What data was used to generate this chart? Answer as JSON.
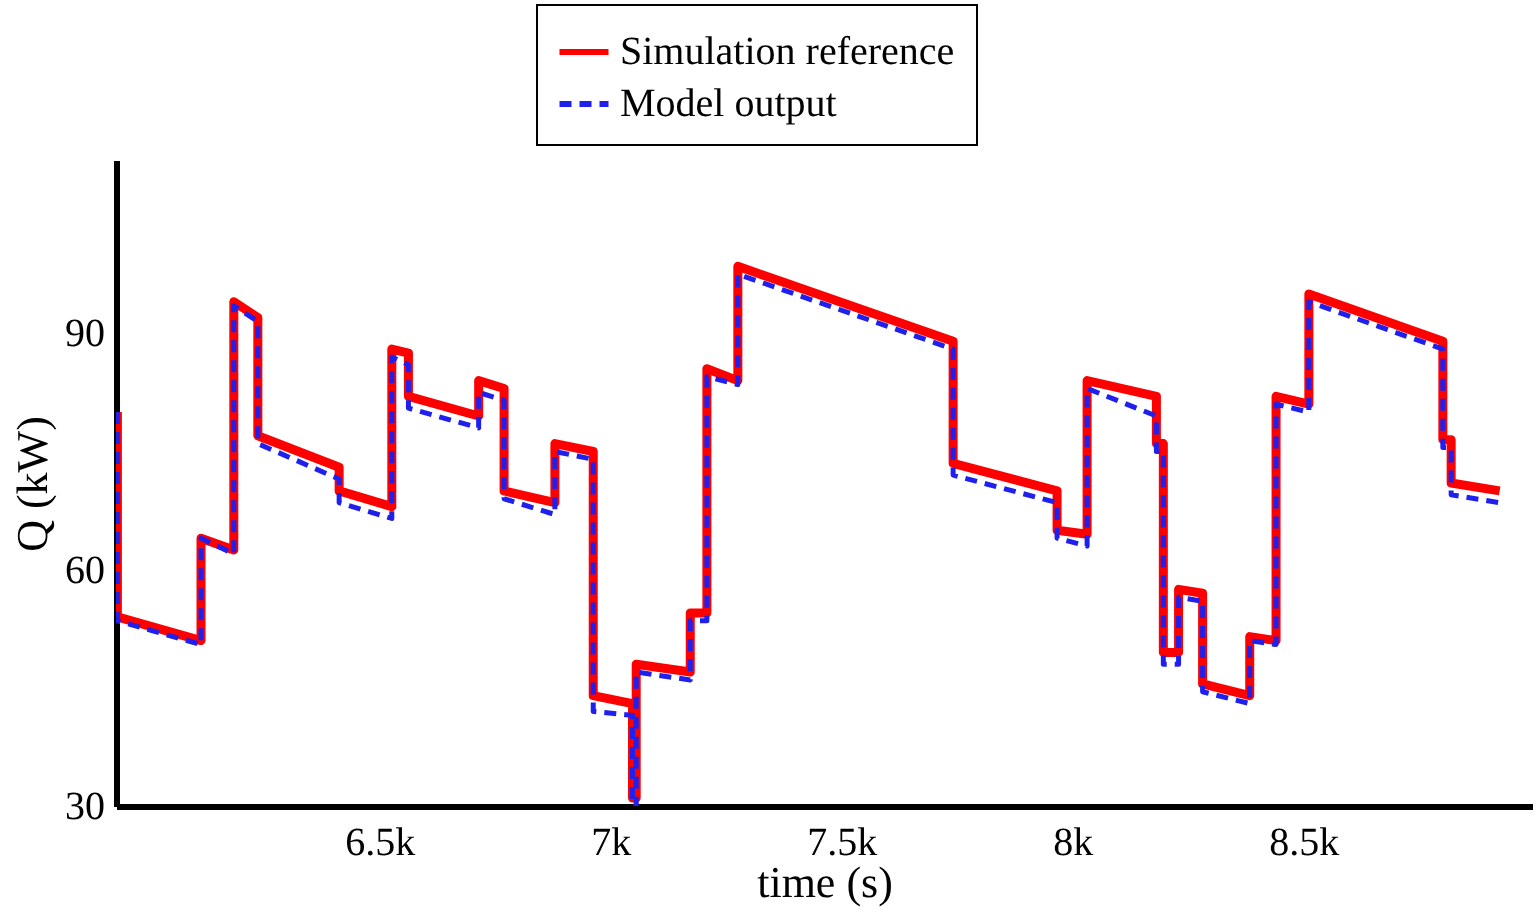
{
  "chart_data": {
    "type": "line",
    "xlabel": "time (s)",
    "ylabel": "Q (kW)",
    "xlim": [
      5930,
      8995
    ],
    "ylim": [
      30,
      112
    ],
    "xticks": [
      {
        "value": 6500,
        "label": "6.5k"
      },
      {
        "value": 7000,
        "label": "7k"
      },
      {
        "value": 7500,
        "label": "7.5k"
      },
      {
        "value": 8000,
        "label": "8k"
      },
      {
        "value": 8500,
        "label": "8.5k"
      }
    ],
    "yticks": [
      30,
      60,
      90
    ],
    "grid": false,
    "legend": "top",
    "marker": "none",
    "series": [
      {
        "name": "Simulation reference",
        "color": "#ff0000",
        "line_style": "solid",
        "x": [
          5933,
          5933,
          6114,
          6114,
          6185,
          6185,
          6237,
          6237,
          6413,
          6413,
          6527,
          6527,
          6563,
          6563,
          6715,
          6715,
          6770,
          6770,
          6880,
          6880,
          6963,
          6963,
          7048,
          7048,
          7056,
          7056,
          7173,
          7173,
          7209,
          7209,
          7276,
          7276,
          7742,
          7742,
          7967,
          7967,
          8032,
          8032,
          8182,
          8182,
          8197,
          8197,
          8230,
          8230,
          8282,
          8282,
          8384,
          8384,
          8441,
          8441,
          8512,
          8512,
          8802,
          8802,
          8820,
          8820,
          8925
        ],
        "values": [
          80,
          54,
          51,
          64,
          62.5,
          94,
          92,
          77,
          73,
          70,
          68,
          88,
          87.5,
          82,
          79.5,
          84,
          83,
          70,
          68.5,
          76,
          75,
          44,
          43,
          31,
          31,
          48,
          47,
          54.5,
          54.5,
          85.5,
          84,
          98.5,
          89,
          73.5,
          70,
          65,
          64.5,
          84,
          82,
          76,
          76,
          49.5,
          49.5,
          57.5,
          57,
          45.5,
          44,
          51.5,
          51,
          82,
          81,
          95,
          89,
          76.5,
          76.5,
          71,
          70
        ]
      },
      {
        "name": "Model output",
        "color": "#2020ee",
        "line_style": "dashed",
        "x": [
          5933,
          5933,
          6114,
          6114,
          6185,
          6185,
          6237,
          6237,
          6413,
          6413,
          6527,
          6527,
          6563,
          6563,
          6715,
          6715,
          6770,
          6770,
          6880,
          6880,
          6963,
          6963,
          7048,
          7048,
          7056,
          7056,
          7173,
          7173,
          7209,
          7209,
          7276,
          7276,
          7742,
          7742,
          7967,
          7967,
          8032,
          8032,
          8182,
          8182,
          8197,
          8197,
          8230,
          8230,
          8282,
          8282,
          8384,
          8384,
          8441,
          8441,
          8512,
          8512,
          8802,
          8802,
          8820,
          8820,
          8925
        ],
        "values": [
          80,
          53.5,
          50.5,
          64,
          62,
          93.5,
          91.5,
          76,
          71.5,
          68.5,
          66.5,
          87,
          86,
          80.5,
          78,
          82.5,
          81.5,
          69,
          67,
          75,
          74,
          42,
          41.5,
          30,
          30,
          47,
          46,
          53.5,
          53.5,
          84.5,
          83.5,
          97.5,
          88,
          72,
          68.5,
          64,
          63,
          83,
          79.5,
          75,
          75,
          48,
          48,
          56.5,
          56,
          44.5,
          43,
          51,
          50.5,
          81,
          80,
          94,
          88,
          75.5,
          75.5,
          69.5,
          68.5
        ]
      }
    ]
  }
}
